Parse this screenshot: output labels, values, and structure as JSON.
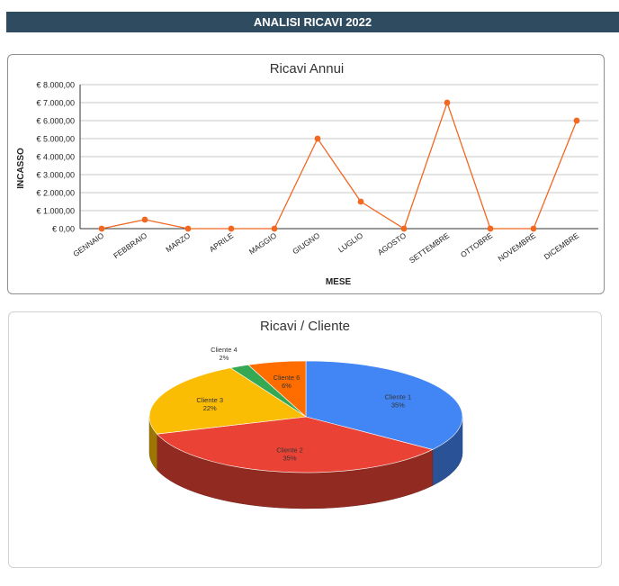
{
  "page": {
    "title": "ANALISI RICAVI 2022"
  },
  "chart_data": [
    {
      "type": "line",
      "title": "Ricavi Annui",
      "xlabel": "MESE",
      "ylabel": "INCASSO",
      "categories": [
        "GENNAIO",
        "FEBBRAIO",
        "MARZO",
        "APRILE",
        "MAGGIO",
        "GIUGNO",
        "LUGLIO",
        "AGOSTO",
        "SETTEMBRE",
        "OTTOBRE",
        "NOVEMBRE",
        "DICEMBRE"
      ],
      "series": [
        {
          "values": [
            0,
            500,
            0,
            0,
            0,
            5000,
            1500,
            0,
            7000,
            0,
            0,
            6000
          ],
          "color": "#f26722"
        }
      ],
      "ylim": [
        0,
        8000
      ],
      "yticks": [
        "€ 0,00",
        "€ 1.000,00",
        "€ 2.000,00",
        "€ 3.000,00",
        "€ 4.000,00",
        "€ 5.000,00",
        "€ 6.000,00",
        "€ 7.000,00",
        "€ 8.000,00"
      ],
      "grid": true
    },
    {
      "type": "pie",
      "title": "Ricavi / Cliente",
      "style": "3d",
      "slices": [
        {
          "label": "Cliente 1",
          "value": 35,
          "pct_label": "35%",
          "color": "#4285f4"
        },
        {
          "label": "Cliente 2",
          "value": 35,
          "pct_label": "35%",
          "color": "#ea4335"
        },
        {
          "label": "Cliente 3",
          "value": 22,
          "pct_label": "22%",
          "color": "#fbbc04"
        },
        {
          "label": "Cliente 4",
          "value": 2,
          "pct_label": "2%",
          "color": "#34a853"
        },
        {
          "label": "Cliente 6",
          "value": 6,
          "pct_label": "6%",
          "color": "#ff6d01"
        }
      ]
    }
  ]
}
